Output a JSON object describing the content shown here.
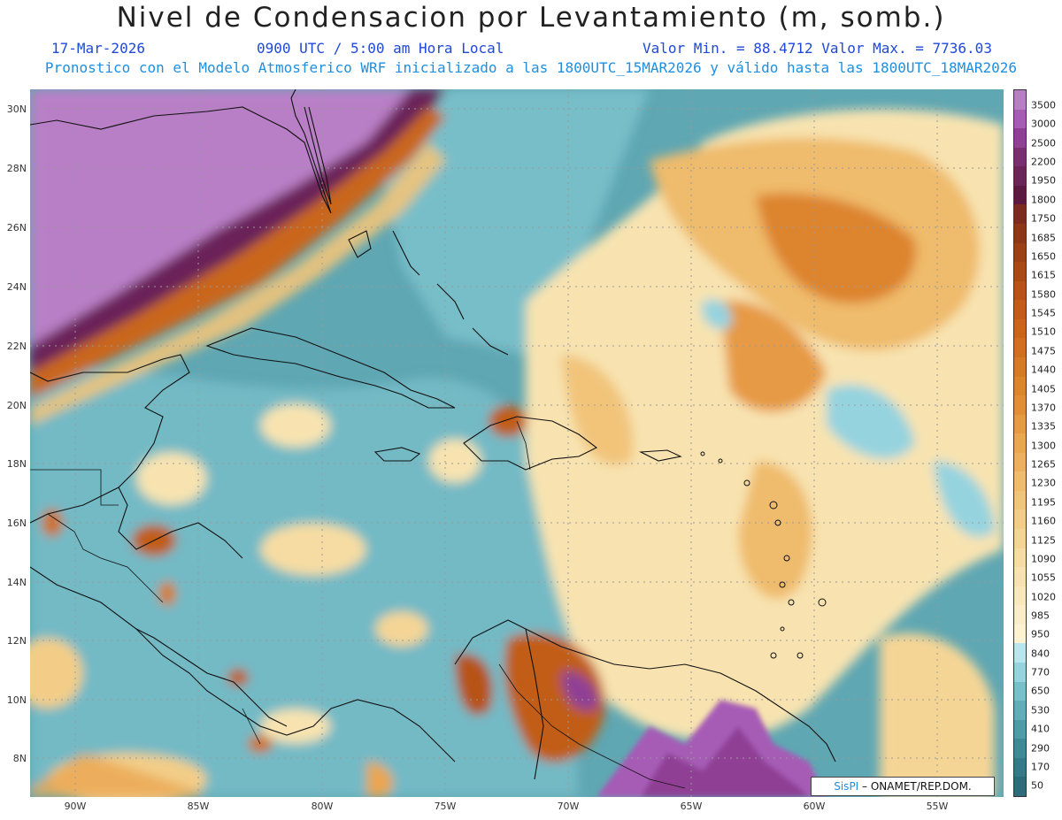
{
  "header": {
    "title": "Nivel de Condensacion por Levantamiento (m, somb.)",
    "date": "17-Mar-2026",
    "time": "0900 UTC / 5:00 am Hora Local",
    "minmax": "Valor Min. = 88.4712   Valor Max. = 7736.03",
    "forecast_note": "Pronostico con el Modelo Atmosferico WRF inicializado a las 1800UTC_15MAR2026 y válido hasta las  1800UTC_18MAR2026"
  },
  "axes": {
    "lat_labels": [
      "30N",
      "28N",
      "26N",
      "24N",
      "22N",
      "20N",
      "18N",
      "16N",
      "14N",
      "12N",
      "10N",
      "8N"
    ],
    "lon_labels": [
      "90W",
      "85W",
      "80W",
      "75W",
      "70W",
      "65W",
      "60W",
      "55W"
    ]
  },
  "colorbar": {
    "labels": [
      "3500",
      "3000",
      "2500",
      "2200",
      "1950",
      "1800",
      "1750",
      "1685",
      "1650",
      "1615",
      "1580",
      "1545",
      "1510",
      "1475",
      "1440",
      "1405",
      "1370",
      "1335",
      "1300",
      "1265",
      "1230",
      "1195",
      "1160",
      "1125",
      "1090",
      "1055",
      "1020",
      "985",
      "950",
      "840",
      "770",
      "650",
      "530",
      "410",
      "290",
      "170",
      "50"
    ],
    "colors": [
      "#b97fc6",
      "#a65cb5",
      "#8f3f95",
      "#7a2e72",
      "#6a2458",
      "#5d1a40",
      "#7d2b1d",
      "#8f3617",
      "#9e4016",
      "#ab4915",
      "#b75317",
      "#c15d19",
      "#c9661c",
      "#d06f21",
      "#d77a27",
      "#dd842e",
      "#e28e38",
      "#e69a44",
      "#eaa651",
      "#edb05e",
      "#efbb6c",
      "#f1c47a",
      "#f3cd88",
      "#f5d596",
      "#f6dca3",
      "#f8e3b0",
      "#f9e8bb",
      "#fbeec6",
      "#fdf3d1",
      "#b7e6ee",
      "#95d3df",
      "#78bfcc",
      "#61adbb",
      "#4e9ba9",
      "#3f8a98",
      "#347a89",
      "#2d6c7b"
    ]
  },
  "credit": {
    "brand": "SisPI",
    "org": " – ONAMET/REP.DOM."
  }
}
